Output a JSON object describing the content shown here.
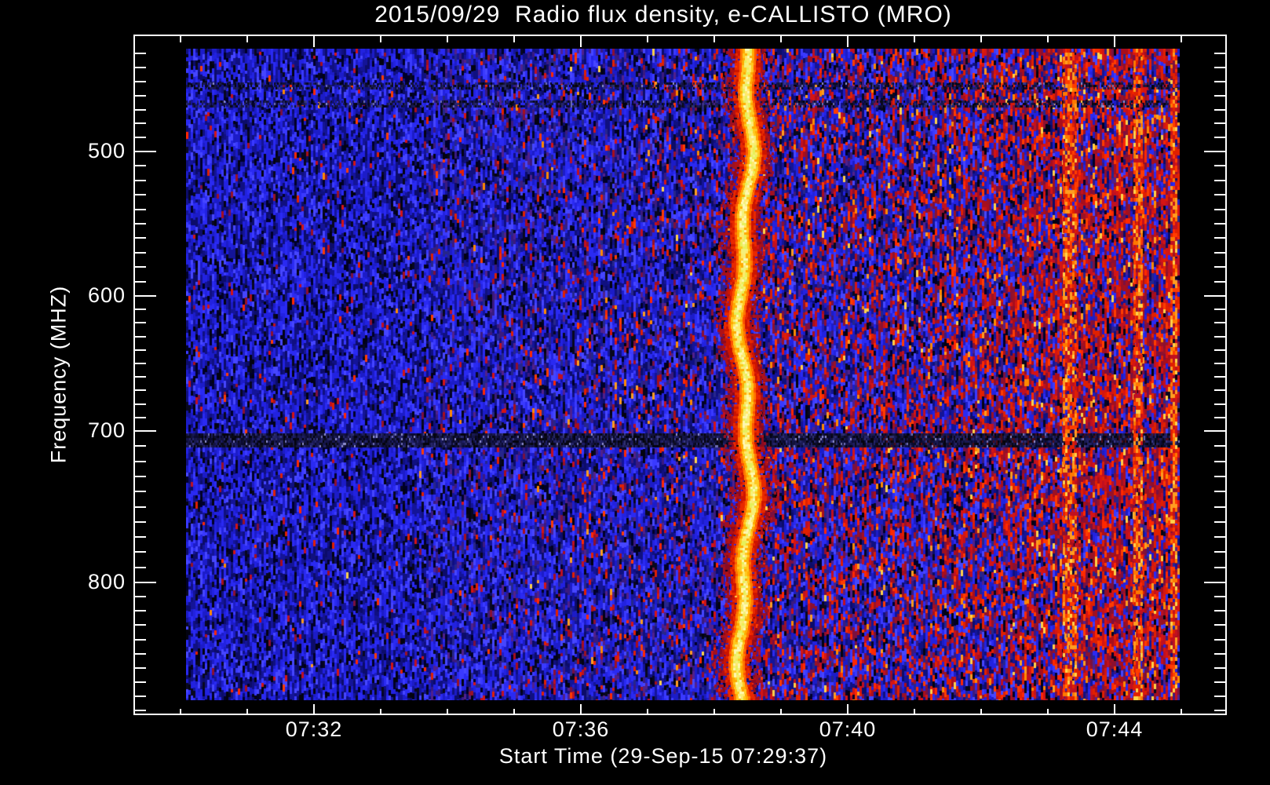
{
  "window": {
    "background": "#000000",
    "text_color": "#ffffff",
    "frame_color": "#ffffff"
  },
  "chart_data": {
    "type": "heatmap",
    "title": "2015/09/29  Radio flux density, e-CALLISTO (MRO)",
    "xlabel": "Start Time (29-Sep-15 07:29:37)",
    "ylabel": "Frequency (MHZ)",
    "x_axis": {
      "tick_labels": [
        "07:32",
        "07:36",
        "07:40",
        "07:44"
      ],
      "minor_tick_interval_min": 1,
      "start_time": "07:29:37",
      "visible_span_estimate": [
        "07:30",
        "07:45"
      ]
    },
    "y_axis": {
      "tick_labels": [
        "500",
        "600",
        "700",
        "800"
      ],
      "minor_tick_step_mhz": 10,
      "range_estimate_mhz": [
        430,
        880
      ],
      "inverted": true
    },
    "colormap": {
      "low": [
        "#030310",
        "#0c0c6a",
        "#1c1cc8",
        "#3a3aff"
      ],
      "mid": [
        "#50208c",
        "#8c1030"
      ],
      "high": [
        "#c01020",
        "#ff3c00",
        "#ff8a00",
        "#ffd24a",
        "#fff7b0"
      ]
    },
    "red_density_profile": [
      [
        0,
        0.02
      ],
      [
        0.22,
        0.025
      ],
      [
        0.32,
        0.05
      ],
      [
        0.45,
        0.1
      ],
      [
        0.53,
        0.13
      ],
      [
        0.58,
        0.26
      ],
      [
        0.72,
        0.32
      ],
      [
        0.8,
        0.4
      ],
      [
        0.85,
        0.52
      ],
      [
        0.9,
        0.62
      ],
      [
        1.0,
        0.62
      ]
    ],
    "features": [
      {
        "name": "strong-burst-vertical-band",
        "approx_time": "07:38:30",
        "time_frac": 0.562,
        "core_color": "#fff7b0",
        "halo_color": "#ff3c00",
        "description": "bright yellow-white wavy vertical burst spanning all frequencies"
      },
      {
        "name": "rfi-horizontal-band",
        "freq_mhz": 700,
        "appearance": "fine dark speckled stripe across full width"
      },
      {
        "name": "faint-horizontal-seams",
        "freq_mhz_estimate": [
          452,
          466
        ]
      },
      {
        "name": "red-speckle-gradient",
        "description": "red RFI speckle density increases from left (quiet blue) to right (dense red)"
      },
      {
        "name": "bright-red-columns",
        "time_fracs": [
          0.889,
          0.958,
          0.994
        ],
        "color": "#ff5a00"
      }
    ]
  }
}
